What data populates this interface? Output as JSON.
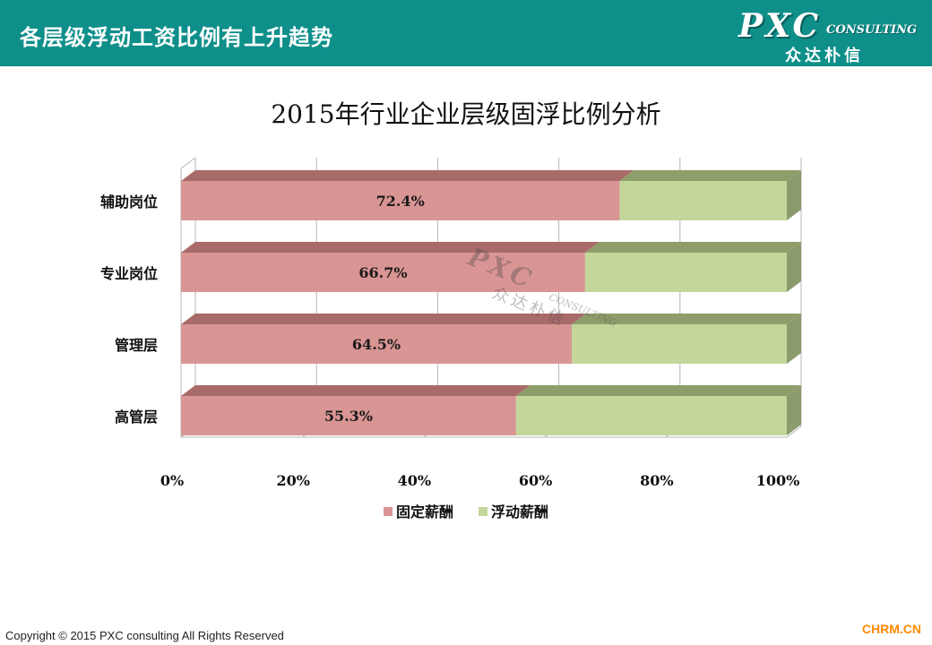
{
  "header": {
    "title": "各层级浮动工资比例有上升趋势",
    "logo_main": "PXC",
    "logo_sub": "CONSULTING",
    "logo_cn": "众达朴信"
  },
  "colors": {
    "header_bg": "#0e8f8a",
    "fixed": "#d99594",
    "fixed_top": "#a86b6a",
    "floating": "#c3d69b",
    "floating_top": "#8e9e6a",
    "floating_side": "#8c9b6c"
  },
  "chart_data": {
    "type": "bar",
    "orientation": "horizontal",
    "stacked": "percent",
    "title": "2015年行业企业层级固浮比例分析",
    "categories": [
      "辅助岗位",
      "专业岗位",
      "管理层",
      "高管层"
    ],
    "series": [
      {
        "name": "固定薪酬",
        "values": [
          72.4,
          66.7,
          64.5,
          55.3
        ],
        "labels": [
          "72.4%",
          "66.7%",
          "64.5%",
          "55.3%"
        ]
      },
      {
        "name": "浮动薪酬",
        "values": [
          27.6,
          33.3,
          35.5,
          44.7
        ]
      }
    ],
    "x_ticks": [
      "0%",
      "20%",
      "40%",
      "60%",
      "80%",
      "100%"
    ],
    "xlim": [
      0,
      100
    ],
    "legend_position": "bottom",
    "grid": true
  },
  "watermark": {
    "main": "PXC",
    "sub": "CONSULTING",
    "cn": "众达朴信"
  },
  "footer": {
    "copyright": "Copyright © 2015  PXC consulting All Rights Reserved",
    "brand": "CHRM.CN"
  }
}
